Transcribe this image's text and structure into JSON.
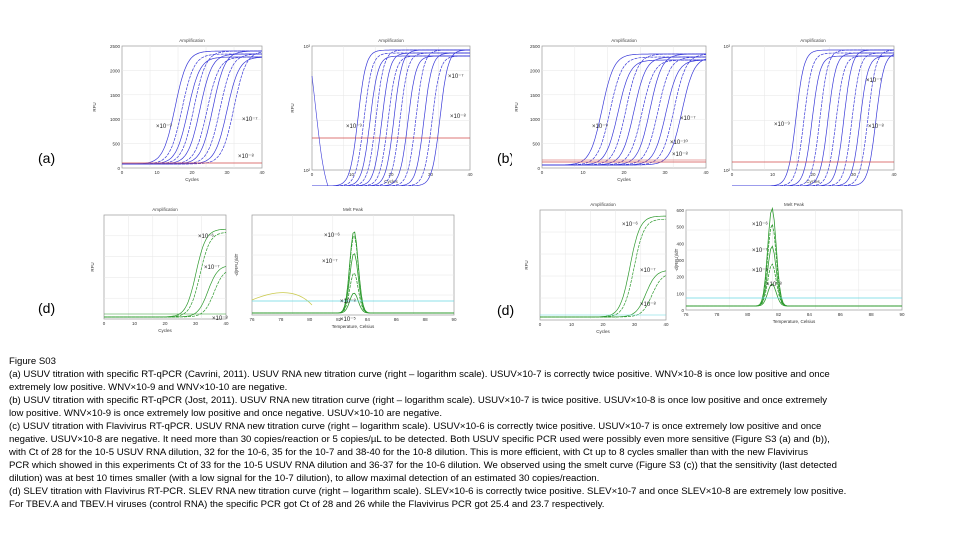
{
  "panel_labels": {
    "a": "(a)",
    "b": "(b)",
    "d1": "(d)",
    "d2": "(d)"
  },
  "plots": {
    "amp_title": "Amplification",
    "melt_title": "Melt Peak",
    "cycles_label": "Cycles",
    "rfu_label": "RFU",
    "melt_xlabel": "Temperature, Celsius",
    "melt_ylabel": "-d(RFU)/dT",
    "a_lin_yticks": [
      "2500",
      "2000",
      "1500",
      "1000",
      "500",
      "0"
    ],
    "a_lin_xticks": [
      "0",
      "10",
      "20",
      "30",
      "40"
    ],
    "a_log_yticks": [
      "10³",
      "10²"
    ],
    "a_log_xticks": [
      "0",
      "10",
      "20",
      "30",
      "40"
    ],
    "b_lin_yticks": [
      "2500",
      "2000",
      "1500",
      "1000",
      "500",
      "0"
    ],
    "b_lin_xticks": [
      "0",
      "10",
      "20",
      "30",
      "40"
    ],
    "b_log_yticks": [
      "10³",
      "10²"
    ],
    "b_log_xticks": [
      "0",
      "10",
      "20",
      "30",
      "40"
    ],
    "c_amp_xticks": [
      "0",
      "10",
      "20",
      "30",
      "40"
    ],
    "c_melt_xticks": [
      "76",
      "78",
      "80",
      "82",
      "84",
      "86",
      "88",
      "90"
    ],
    "d_amp_xticks": [
      "0",
      "10",
      "20",
      "30",
      "40"
    ],
    "d_melt_xticks": [
      "76",
      "78",
      "80",
      "82",
      "84",
      "86",
      "88",
      "90"
    ],
    "d_melt_yticks": [
      "600",
      "500",
      "400",
      "300",
      "200",
      "100",
      "0"
    ],
    "ann_a_lin": [
      "×10⁻⁹",
      "×10⁻⁷",
      "×10⁻⁸"
    ],
    "ann_a_log": [
      "×10⁻⁹",
      "×10⁻⁷",
      "×10⁻⁸"
    ],
    "ann_b_lin": [
      "×10⁻⁹",
      "×10⁻¹⁰",
      "×10⁻⁷",
      "×10⁻⁸"
    ],
    "ann_b_log": [
      "×10⁻⁹",
      "×10⁻⁷",
      "×10⁻⁸"
    ],
    "ann_c_amp": [
      "×10⁻⁶",
      "×10⁻⁷",
      "×10⁻⁸"
    ],
    "ann_c_melt": [
      "×10⁻⁶",
      "×10⁻⁷",
      "×10⁻⁸",
      "×10⁻⁵"
    ],
    "ann_d_amp": [
      "×10⁻⁶",
      "×10⁻⁷",
      "×10⁻⁸"
    ],
    "ann_d_melt": [
      "×10⁻⁶",
      "×10⁻⁷",
      "×10⁻⁸",
      "×10⁻⁵"
    ]
  },
  "caption": {
    "lines": [
      "Figure S03",
      "(a) USUV titration with specific RT-qPCR (Cavrini, 2011). USUV RNA new titration curve (right – logarithm scale). USUV×10-7 is correctly twice positive. WNV×10-8 is once low positive and once",
      "  extremely low positive. WNV×10-9 and WNV×10-10 are negative.",
      "(b) USUV titration with specific RT-qPCR (Jost, 2011). USUV RNA new titration curve (right – logarithm scale).  USUV×10-7 is twice positive. USUV×10-8 is once low positive and once extremely",
      "low positive. WNV×10-9 is once extremely low positive and once negative. USUV×10-10 are negative.",
      "(c) USUV titration with Flavivirus RT-qPCR. USUV RNA new titration curve (right – logarithm scale). USUV×10-6 is correctly twice positive. USUV×10-7 is once extremely low positive and once",
      "negative. USUV×10-8 are negative. It need more than 30 copies/reaction or 5 copies/µL to be detected.  Both USUV specific PCR used were possibly even more sensitive (Figure S3 (a) and (b)),",
      "with Ct of 28 for the 10-5 USUV RNA dilution, 32 for the 10-6, 35 for the 10-7 and 38-40 for the 10-8 dilution. This is more efficient, with Ct up to 8 cycles smaller than with the new Flavivirus",
      "PCR which showed in this experiments Ct of 33 for the 10-5 USUV RNA dilution and 36-37 for the 10-6 dilution. We observed using the smelt curve (Figure S3 (c)) that the sensitivity (last detected",
      "dilution) was at best 10 times smaller (with a low signal for the 10-7 dilution), to allow maximal detection of an estimated 30 copies/reaction.",
      "(d) SLEV titration with Flavivirus RT-PCR. SLEV RNA new titration curve (right – logarithm scale).  SLEV×10-6 is correctly twice positive. SLEV×10-7 and once SLEV×10-8 are extremely low positive.",
      " For TBEV.A and TBEV.H viruses (control RNA) the specific PCR got Ct of 28 and 26 while the Flavivirus PCR got 25.4 and 23.7 respectively."
    ]
  }
}
